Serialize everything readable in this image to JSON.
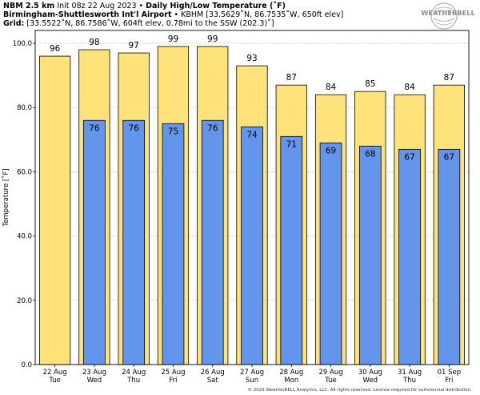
{
  "header": {
    "model": "NBM 2.5 km",
    "init": "Init 08z 22 Aug 2023",
    "bullet": "•",
    "title": "Daily High/Low Temperature (˚F)",
    "station_name": "Birmingham-Shuttlesworth Int'l Airport",
    "station_info": "KBHM [33.5629˚N, 86.7535˚W, 650ft elev]",
    "grid_label": "Grid:",
    "grid_info": "[33.5522˚N, 86.7586˚W, 604ft elev, 0.78mi to the SSW (202.3)˚]"
  },
  "logo": {
    "text": "WEATHERBELL",
    "icon": "weatherbell-swirl-logo"
  },
  "copyright": "© 2023 WeatherBELL Analytics, LLC. All rights reserved. License required for commercial distribution.",
  "colors": {
    "high": "#FFE27A",
    "low": "#6495ED",
    "bar_edge": "#000000",
    "grid": "#cccccc"
  },
  "chart_data": {
    "type": "bar",
    "ylabel": "Temperature [˚F]",
    "ylim": [
      0,
      104
    ],
    "yticks": [
      0.0,
      20.0,
      40.0,
      60.0,
      80.0,
      100.0
    ],
    "ytick_labels": [
      "0.0",
      "20.0",
      "40.0",
      "60.0",
      "80.0",
      "100.0"
    ],
    "grid": true,
    "categories": [
      {
        "date": "22 Aug",
        "day": "Tue"
      },
      {
        "date": "23 Aug",
        "day": "Wed"
      },
      {
        "date": "24 Aug",
        "day": "Thu"
      },
      {
        "date": "25 Aug",
        "day": "Fri"
      },
      {
        "date": "26 Aug",
        "day": "Sat"
      },
      {
        "date": "27 Aug",
        "day": "Sun"
      },
      {
        "date": "28 Aug",
        "day": "Mon"
      },
      {
        "date": "29 Aug",
        "day": "Tue"
      },
      {
        "date": "30 Aug",
        "day": "Wed"
      },
      {
        "date": "31 Aug",
        "day": "Thu"
      },
      {
        "date": "01 Sep",
        "day": "Fri"
      }
    ],
    "series": [
      {
        "key": "high",
        "values": [
          96,
          98,
          97,
          99,
          99,
          93,
          87,
          84,
          85,
          84,
          87
        ]
      },
      {
        "key": "low",
        "values": [
          null,
          76,
          76,
          75,
          76,
          74,
          71,
          69,
          68,
          67,
          67
        ]
      }
    ]
  }
}
